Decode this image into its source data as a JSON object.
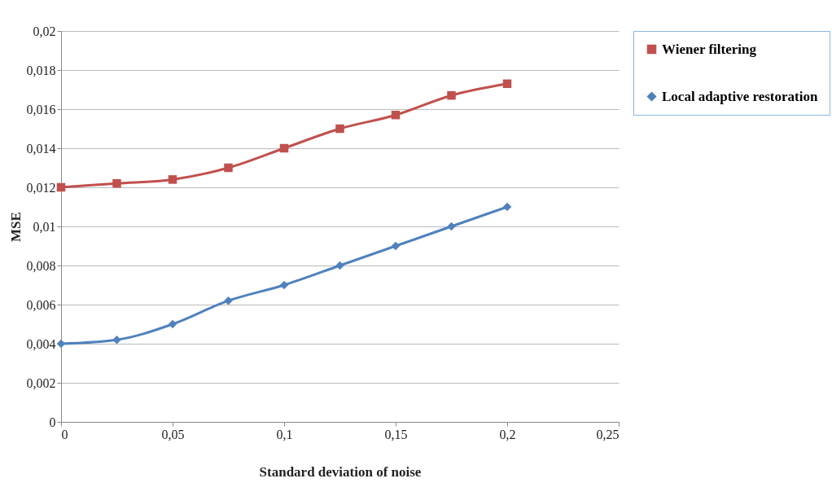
{
  "chart_data": {
    "type": "line",
    "xlabel": "Standard deviation of noise",
    "ylabel": "MSE",
    "x": [
      0,
      0.025,
      0.05,
      0.075,
      0.1,
      0.125,
      0.15,
      0.175,
      0.2
    ],
    "series": [
      {
        "name": "Wiener filtering",
        "color": "#c0504d",
        "marker": "square",
        "values": [
          0.012,
          0.0122,
          0.0124,
          0.013,
          0.014,
          0.015,
          0.0157,
          0.0167,
          0.0173
        ]
      },
      {
        "name": "Local adaptive restoration",
        "color": "#4f81bd",
        "marker": "diamond",
        "values": [
          0.004,
          0.0042,
          0.005,
          0.0062,
          0.007,
          0.008,
          0.009,
          0.01,
          0.011
        ]
      }
    ],
    "xlim": [
      0,
      0.25
    ],
    "xticks": [
      0,
      {
        "value": 0.05,
        "label": "0,05"
      },
      {
        "value": 0.1,
        "label": "0,1"
      },
      {
        "value": 0.15,
        "label": "0,15"
      },
      {
        "value": 0.2,
        "label": "0,2"
      },
      {
        "value": 0.25,
        "label": "0,25"
      }
    ],
    "ylim": [
      0,
      0.02
    ],
    "yticks": [
      0,
      {
        "value": 0.002,
        "label": "0,002"
      },
      {
        "value": 0.004,
        "label": "0,004"
      },
      {
        "value": 0.006,
        "label": "0,006"
      },
      {
        "value": 0.008,
        "label": "0,008"
      },
      {
        "value": 0.01,
        "label": "0,01"
      },
      {
        "value": 0.012,
        "label": "0,012"
      },
      {
        "value": 0.014,
        "label": "0,014"
      },
      {
        "value": 0.016,
        "label": "0,016"
      },
      {
        "value": 0.018,
        "label": "0,018"
      },
      {
        "value": 0.02,
        "label": "0,02"
      }
    ],
    "grid": "y",
    "legend": "right",
    "line_style": "solid"
  }
}
